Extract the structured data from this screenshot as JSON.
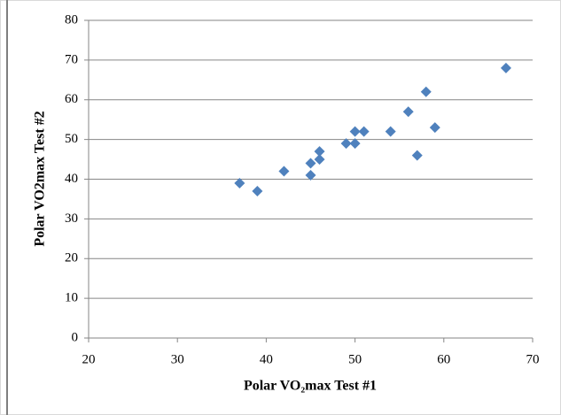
{
  "chart_data": {
    "type": "scatter",
    "x_label": "Polar VO₂max Test #1",
    "y_label": "Polar VO2max Test #2",
    "x": [
      37,
      39,
      42,
      45,
      45,
      46,
      46,
      49,
      50,
      50,
      51,
      54,
      56,
      57,
      58,
      59,
      67
    ],
    "values": [
      39,
      37,
      42,
      41,
      44,
      45,
      47,
      49,
      49,
      52,
      52,
      52,
      57,
      46,
      62,
      53,
      68
    ],
    "color": "#4f81bd",
    "xlim": [
      20,
      70
    ],
    "xticks": [
      20,
      30,
      40,
      50,
      60,
      70
    ],
    "ylim": [
      0,
      80
    ],
    "yticks": [
      0,
      10,
      20,
      30,
      40,
      50,
      60,
      70,
      80
    ],
    "grid": true
  }
}
